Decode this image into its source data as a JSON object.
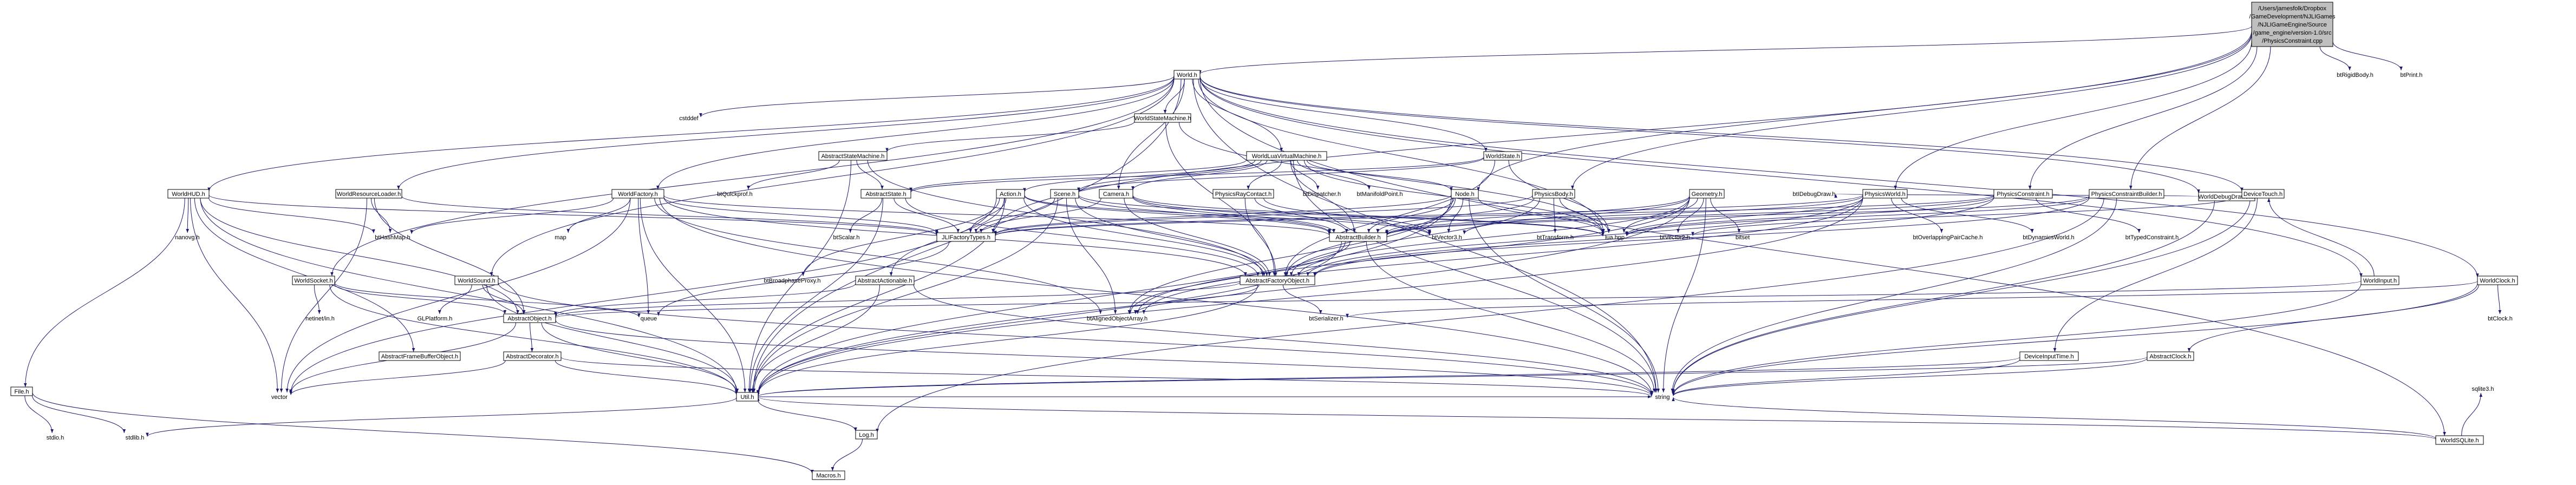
{
  "diagram": {
    "title": "/Users/jamesfolk/Dropbox/GameDevelopment/NJLIGames/NJLIGameEngine/Source/game_engine/version-1.0/src/PhysicsConstraint.cpp",
    "root": {
      "id": "root",
      "lines": [
        "/Users/jamesfolk/Dropbox",
        "/GameDevelopment/NJLIGames",
        "/NJLIGameEngine/Source",
        "/game_engine/version-1.0/src",
        "/PhysicsConstraint.cpp"
      ]
    },
    "nodes": [
      {
        "id": "world",
        "label": "World.h",
        "boxed": true
      },
      {
        "id": "btrigid",
        "label": "btRigidBody.h",
        "boxed": false
      },
      {
        "id": "btprint",
        "label": "btPrint.h",
        "boxed": false
      },
      {
        "id": "worldhud",
        "label": "WorldHUD.h",
        "boxed": true
      },
      {
        "id": "cstddef",
        "label": "cstddef",
        "boxed": false
      },
      {
        "id": "wsm",
        "label": "WorldStateMachine.h",
        "boxed": true
      },
      {
        "id": "wlvm",
        "label": "WorldLuaVirtualMachine.h",
        "boxed": true
      },
      {
        "id": "wstate",
        "label": "WorldState.h",
        "boxed": true
      },
      {
        "id": "wdebug",
        "label": "WorldDebugDrawer.h",
        "boxed": true
      },
      {
        "id": "wsqlite",
        "label": "WorldSQLite.h",
        "boxed": true
      },
      {
        "id": "wreload",
        "label": "WorldResourceLoader.h",
        "boxed": true
      },
      {
        "id": "wfactory",
        "label": "WorldFactory.h",
        "boxed": true
      },
      {
        "id": "asm",
        "label": "AbstractStateMachine.h",
        "boxed": true
      },
      {
        "id": "abstate",
        "label": "AbstractState.h",
        "boxed": true
      },
      {
        "id": "btquick",
        "label": "btQuickprof.h",
        "boxed": false
      },
      {
        "id": "scene",
        "label": "Scene.h",
        "boxed": true
      },
      {
        "id": "action",
        "label": "Action.h",
        "boxed": true
      },
      {
        "id": "camera",
        "label": "Camera.h",
        "boxed": true
      },
      {
        "id": "ppcontact",
        "label": "PhysicsRayContact.h",
        "boxed": true
      },
      {
        "id": "btdisp",
        "label": "btDispatcher.h",
        "boxed": false
      },
      {
        "id": "btmani",
        "label": "btManifoldPoint.h",
        "boxed": false
      },
      {
        "id": "node",
        "label": "Node.h",
        "boxed": true
      },
      {
        "id": "pbody",
        "label": "PhysicsBody.h",
        "boxed": true
      },
      {
        "id": "geometry",
        "label": "Geometry.h",
        "boxed": true
      },
      {
        "id": "btdebug",
        "label": "btIDebugDraw.h",
        "boxed": false
      },
      {
        "id": "pworld",
        "label": "PhysicsWorld.h",
        "boxed": true
      },
      {
        "id": "pconst",
        "label": "PhysicsConstraint.h",
        "boxed": true
      },
      {
        "id": "pcbuild",
        "label": "PhysicsConstraintBuilder.h",
        "boxed": true
      },
      {
        "id": "devtouch",
        "label": "DeviceTouch.h",
        "boxed": true
      },
      {
        "id": "nanovg",
        "label": "nanovg.h",
        "boxed": false
      },
      {
        "id": "bthash",
        "label": "btHashMap.h",
        "boxed": false
      },
      {
        "id": "map",
        "label": "map",
        "boxed": false
      },
      {
        "id": "jlifact",
        "label": "JLIFactoryTypes.h",
        "boxed": true
      },
      {
        "id": "btscalar",
        "label": "btScalar.h",
        "boxed": false
      },
      {
        "id": "abuilder",
        "label": "AbstractBuilder.h",
        "boxed": true
      },
      {
        "id": "btvec3",
        "label": "btVector3.h",
        "boxed": false
      },
      {
        "id": "luahpp",
        "label": "lua.hpp",
        "boxed": false
      },
      {
        "id": "bttrans",
        "label": "btTransform.h",
        "boxed": false
      },
      {
        "id": "btvec2",
        "label": "btVector2.h",
        "boxed": false
      },
      {
        "id": "bitset",
        "label": "bitset",
        "boxed": false
      },
      {
        "id": "btoverlap",
        "label": "btOverlappingPairCache.h",
        "boxed": false
      },
      {
        "id": "btdynworld",
        "label": "btDynamicsWorld.h",
        "boxed": false
      },
      {
        "id": "bttypedc",
        "label": "btTypedConstraint.h",
        "boxed": false
      },
      {
        "id": "wsocket",
        "label": "WorldSocket.h",
        "boxed": true
      },
      {
        "id": "wsound",
        "label": "WorldSound.h",
        "boxed": true
      },
      {
        "id": "btbroad",
        "label": "btBroadphaseProxy.h",
        "boxed": false
      },
      {
        "id": "aactionable",
        "label": "AbstractActionable.h",
        "boxed": true
      },
      {
        "id": "afobject",
        "label": "AbstractFactoryObject.h",
        "boxed": true
      },
      {
        "id": "winput",
        "label": "WorldInput.h",
        "boxed": true
      },
      {
        "id": "wclock",
        "label": "WorldClock.h",
        "boxed": true
      },
      {
        "id": "netinet",
        "label": "netinet/in.h",
        "boxed": false
      },
      {
        "id": "glplat",
        "label": "GLPlatform.h",
        "boxed": false
      },
      {
        "id": "queue",
        "label": "queue",
        "boxed": false
      },
      {
        "id": "btaligned",
        "label": "btAlignedObjectArray.h",
        "boxed": false
      },
      {
        "id": "btserial",
        "label": "btSerializer.h",
        "boxed": false
      },
      {
        "id": "btclock",
        "label": "btClock.h",
        "boxed": false
      },
      {
        "id": "aobject",
        "label": "AbstractObject.h",
        "boxed": true
      },
      {
        "id": "afbo",
        "label": "AbstractFrameBufferObject.h",
        "boxed": true
      },
      {
        "id": "adecor",
        "label": "AbstractDecorator.h",
        "boxed": true
      },
      {
        "id": "devinput",
        "label": "DeviceInputTime.h",
        "boxed": true
      },
      {
        "id": "aclock",
        "label": "AbstractClock.h",
        "boxed": true
      },
      {
        "id": "wsqlite2",
        "label": "sqlite3.h",
        "boxed": false
      },
      {
        "id": "file",
        "label": "File.h",
        "boxed": true
      },
      {
        "id": "vector",
        "label": "vector",
        "boxed": false
      },
      {
        "id": "util",
        "label": "Util.h",
        "boxed": true
      },
      {
        "id": "string",
        "label": "string",
        "boxed": false
      },
      {
        "id": "stdioh",
        "label": "stdio.h",
        "boxed": false
      },
      {
        "id": "stdlibh",
        "label": "stdlib.h",
        "boxed": false
      },
      {
        "id": "log",
        "label": "Log.h",
        "boxed": true
      },
      {
        "id": "macros",
        "label": "Macros.h",
        "boxed": true
      }
    ],
    "edges": [
      [
        "root",
        "world"
      ],
      [
        "root",
        "btrigid"
      ],
      [
        "root",
        "btprint"
      ],
      [
        "root",
        "node"
      ],
      [
        "root",
        "pconst"
      ],
      [
        "root",
        "pcbuild"
      ],
      [
        "root",
        "jlifact"
      ],
      [
        "root",
        "pworld"
      ],
      [
        "root",
        "pbody"
      ],
      [
        "world",
        "worldhud"
      ],
      [
        "world",
        "cstddef"
      ],
      [
        "world",
        "wsm"
      ],
      [
        "world",
        "wlvm"
      ],
      [
        "world",
        "wstate"
      ],
      [
        "world",
        "wdebug"
      ],
      [
        "world",
        "wsqlite"
      ],
      [
        "world",
        "wreload"
      ],
      [
        "world",
        "wfactory"
      ],
      [
        "world",
        "camera"
      ],
      [
        "world",
        "wsocket"
      ],
      [
        "world",
        "wsound"
      ],
      [
        "world",
        "winput"
      ],
      [
        "world",
        "wclock"
      ],
      [
        "world",
        "util"
      ],
      [
        "world",
        "luahpp"
      ],
      [
        "world",
        "string"
      ],
      [
        "world",
        "devtouch"
      ],
      [
        "worldhud",
        "nanovg"
      ],
      [
        "worldhud",
        "bthash"
      ],
      [
        "worldhud",
        "file"
      ],
      [
        "worldhud",
        "vector"
      ],
      [
        "worldhud",
        "afbo"
      ],
      [
        "worldhud",
        "aobject"
      ],
      [
        "worldhud",
        "jlifact"
      ],
      [
        "worldhud",
        "util"
      ],
      [
        "wsm",
        "asm"
      ],
      [
        "wsm",
        "afobject"
      ],
      [
        "wsm",
        "luahpp"
      ],
      [
        "wlvm",
        "action"
      ],
      [
        "wlvm",
        "scene"
      ],
      [
        "wlvm",
        "camera"
      ],
      [
        "wlvm",
        "ppcontact"
      ],
      [
        "wlvm",
        "btdisp"
      ],
      [
        "wlvm",
        "btmani"
      ],
      [
        "wlvm",
        "node"
      ],
      [
        "wlvm",
        "abstate"
      ],
      [
        "wlvm",
        "luahpp"
      ],
      [
        "wlvm",
        "string"
      ],
      [
        "wlvm",
        "abuilder"
      ],
      [
        "wstate",
        "abstate"
      ],
      [
        "wstate",
        "luahpp"
      ],
      [
        "wstate",
        "afobject"
      ],
      [
        "wstate",
        "scene"
      ],
      [
        "wdebug",
        "btdebug"
      ],
      [
        "wdebug",
        "string"
      ],
      [
        "wsqlite",
        "wsqlite2"
      ],
      [
        "wsqlite",
        "string"
      ],
      [
        "wsqlite",
        "util"
      ],
      [
        "wreload",
        "bthash"
      ],
      [
        "wreload",
        "vector"
      ],
      [
        "wreload",
        "jlifact"
      ],
      [
        "wreload",
        "aobject"
      ],
      [
        "wfactory",
        "bthash"
      ],
      [
        "wfactory",
        "map"
      ],
      [
        "wfactory",
        "jlifact"
      ],
      [
        "wfactory",
        "abuilder"
      ],
      [
        "wfactory",
        "afobject"
      ],
      [
        "wfactory",
        "queue"
      ],
      [
        "wfactory",
        "util"
      ],
      [
        "wfactory",
        "vector"
      ],
      [
        "wfactory",
        "btaligned"
      ],
      [
        "wfactory",
        "string"
      ],
      [
        "asm",
        "abstate"
      ],
      [
        "asm",
        "btquick"
      ],
      [
        "asm",
        "util"
      ],
      [
        "asm",
        "afobject"
      ],
      [
        "abstate",
        "jlifact"
      ],
      [
        "abstate",
        "btscalar"
      ],
      [
        "abstate",
        "util"
      ],
      [
        "abstate",
        "afobject"
      ],
      [
        "scene",
        "jlifact"
      ],
      [
        "scene",
        "abuilder"
      ],
      [
        "scene",
        "afobject"
      ],
      [
        "scene",
        "util"
      ],
      [
        "scene",
        "luahpp"
      ],
      [
        "scene",
        "btaligned"
      ],
      [
        "action",
        "jlifact"
      ],
      [
        "action",
        "abuilder"
      ],
      [
        "action",
        "aactionable"
      ],
      [
        "action",
        "afobject"
      ],
      [
        "action",
        "util"
      ],
      [
        "action",
        "btbroad"
      ],
      [
        "action",
        "vector"
      ],
      [
        "action",
        "btvec3"
      ],
      [
        "camera",
        "jlifact"
      ],
      [
        "camera",
        "abuilder"
      ],
      [
        "camera",
        "btvec3"
      ],
      [
        "camera",
        "luahpp"
      ],
      [
        "camera",
        "afobject"
      ],
      [
        "ppcontact",
        "abuilder"
      ],
      [
        "ppcontact",
        "afobject"
      ],
      [
        "ppcontact",
        "btvec3"
      ],
      [
        "node",
        "abuilder"
      ],
      [
        "node",
        "jlifact"
      ],
      [
        "node",
        "afobject"
      ],
      [
        "node",
        "btvec3"
      ],
      [
        "node",
        "luahpp"
      ],
      [
        "node",
        "util"
      ],
      [
        "node",
        "btaligned"
      ],
      [
        "node",
        "string"
      ],
      [
        "pbody",
        "abuilder"
      ],
      [
        "pbody",
        "jlifact"
      ],
      [
        "pbody",
        "luahpp"
      ],
      [
        "pbody",
        "bttrans"
      ],
      [
        "pbody",
        "afobject"
      ],
      [
        "geometry",
        "abuilder"
      ],
      [
        "geometry",
        "luahpp"
      ],
      [
        "geometry",
        "btvec2"
      ],
      [
        "geometry",
        "bitset"
      ],
      [
        "geometry",
        "btvec3"
      ],
      [
        "geometry",
        "afobject"
      ],
      [
        "geometry",
        "btaligned"
      ],
      [
        "geometry",
        "util"
      ],
      [
        "geometry",
        "string"
      ],
      [
        "pworld",
        "abuilder"
      ],
      [
        "pworld",
        "btoverlap"
      ],
      [
        "pworld",
        "btdynworld"
      ],
      [
        "pworld",
        "luahpp"
      ],
      [
        "pworld",
        "afobject"
      ],
      [
        "pworld",
        "btaligned"
      ],
      [
        "pworld",
        "util"
      ],
      [
        "pworld",
        "jlifact"
      ],
      [
        "pconst",
        "abuilder"
      ],
      [
        "pconst",
        "bttypedc"
      ],
      [
        "pconst",
        "luahpp"
      ],
      [
        "pconst",
        "afobject"
      ],
      [
        "pconst",
        "jlifact"
      ],
      [
        "pcbuild",
        "abuilder"
      ],
      [
        "pcbuild",
        "afobject"
      ],
      [
        "pcbuild",
        "luahpp"
      ],
      [
        "pcbuild",
        "string"
      ],
      [
        "pcbuild",
        "log"
      ],
      [
        "devtouch",
        "string"
      ],
      [
        "devtouch",
        "devinput"
      ],
      [
        "devtouch",
        "btvec2"
      ],
      [
        "abuilder",
        "afobject"
      ],
      [
        "abuilder",
        "string"
      ],
      [
        "abuilder",
        "util"
      ],
      [
        "abuilder",
        "btaligned"
      ],
      [
        "jlifact",
        "queue"
      ],
      [
        "afobject",
        "aobject"
      ],
      [
        "afobject",
        "btaligned"
      ],
      [
        "afobject",
        "btserial"
      ],
      [
        "afobject",
        "util"
      ],
      [
        "aactionable",
        "aobject"
      ],
      [
        "aactionable",
        "util"
      ],
      [
        "aactionable",
        "string"
      ],
      [
        "wsocket",
        "netinet"
      ],
      [
        "wsocket",
        "queue"
      ],
      [
        "wsocket",
        "aobject"
      ],
      [
        "wsocket",
        "util"
      ],
      [
        "wsound",
        "glplat"
      ],
      [
        "wsound",
        "aobject"
      ],
      [
        "wsound",
        "util"
      ],
      [
        "wsound",
        "string"
      ],
      [
        "winput",
        "aobject"
      ],
      [
        "winput",
        "string"
      ],
      [
        "winput",
        "devtouch"
      ],
      [
        "wclock",
        "btclock"
      ],
      [
        "wclock",
        "aclock"
      ],
      [
        "wclock",
        "string"
      ],
      [
        "wclock",
        "btserial"
      ],
      [
        "aobject",
        "adecor"
      ],
      [
        "aobject",
        "util"
      ],
      [
        "aobject",
        "string"
      ],
      [
        "aobject",
        "vector"
      ],
      [
        "adecor",
        "util"
      ],
      [
        "adecor",
        "vector"
      ],
      [
        "adecor",
        "string"
      ],
      [
        "devinput",
        "util"
      ],
      [
        "devinput",
        "string"
      ],
      [
        "aclock",
        "util"
      ],
      [
        "aclock",
        "string"
      ],
      [
        "file",
        "stdioh"
      ],
      [
        "file",
        "stdlibh"
      ],
      [
        "file",
        "macros"
      ],
      [
        "util",
        "stdlibh"
      ],
      [
        "util",
        "log"
      ],
      [
        "util",
        "string"
      ],
      [
        "log",
        "macros"
      ]
    ]
  }
}
